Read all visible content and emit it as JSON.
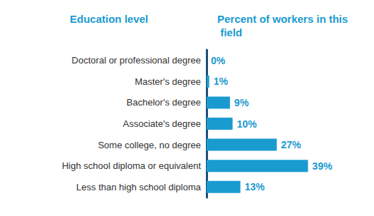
{
  "chart_data": {
    "type": "bar",
    "orientation": "horizontal",
    "ylabel": "Education level",
    "xlabel": "Percent of workers in this field",
    "categories": [
      "Doctoral or professional degree",
      "Master's degree",
      "Bachelor's degree",
      "Associate's degree",
      "Some college, no degree",
      "High school diploma or equivalent",
      "Less than high school diploma"
    ],
    "values": [
      0,
      1,
      9,
      10,
      27,
      39,
      13
    ],
    "value_labels": [
      "0%",
      "1%",
      "9%",
      "10%",
      "27%",
      "39%",
      "13%"
    ],
    "color": "#1a9bd0",
    "xlim": [
      0,
      40
    ],
    "data_labels": true,
    "tick_labels": "y",
    "grid": false
  }
}
